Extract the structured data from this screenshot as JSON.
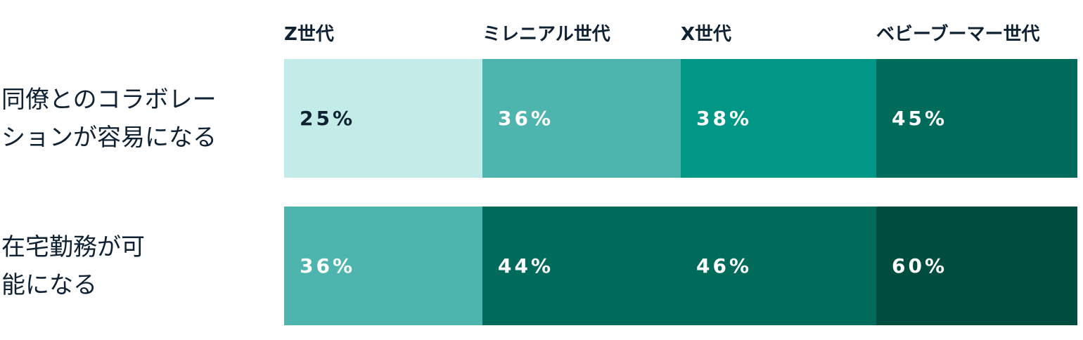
{
  "chart_data": {
    "type": "heatmap",
    "columns": [
      "Z世代",
      "ミレニアル世代",
      "X世代",
      "ベビーブーマー世代"
    ],
    "rows": [
      {
        "label_lines": [
          "同僚とのコラボレー",
          "ションが容易になる"
        ],
        "values": [
          25,
          36,
          38,
          45
        ],
        "labels": [
          "25%",
          "36%",
          "38%",
          "45%"
        ]
      },
      {
        "label_lines": [
          "在宅勤務が可",
          "能になる"
        ],
        "values": [
          36,
          44,
          46,
          60
        ],
        "labels": [
          "36%",
          "44%",
          "46%",
          "60%"
        ]
      }
    ],
    "colors": {
      "25": "#c3ebe7",
      "36": "#4db5ae",
      "38": "#009787",
      "44": "#006a5b",
      "45": "#006a5b",
      "46": "#006a5b",
      "60": "#004c3f",
      "text_dark": "#0f2233",
      "text_light": "#ffffff"
    }
  }
}
